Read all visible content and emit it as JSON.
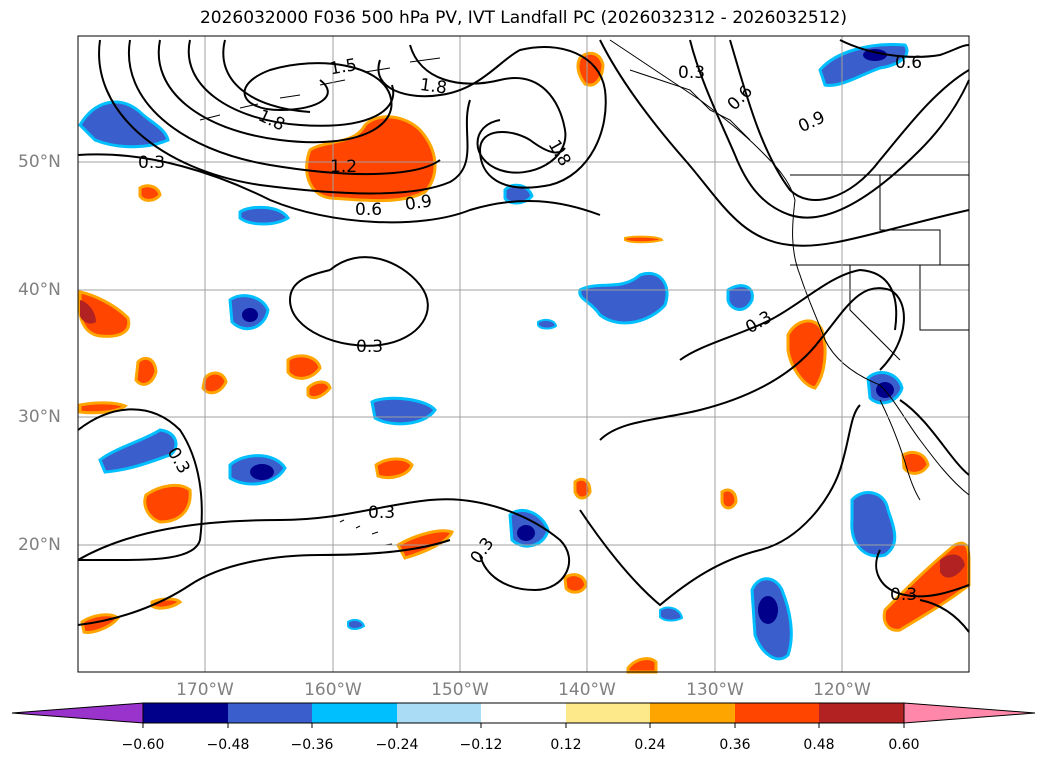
{
  "title": "2026032000 F036 500 hPa PV, IVT Landfall PC (2026032312 - 2026032512)",
  "map": {
    "region": "North Pacific / US West Coast",
    "lat_labels": [
      "50°N",
      "40°N",
      "30°N",
      "20°N"
    ],
    "lon_labels": [
      "170°W",
      "160°W",
      "150°W",
      "140°W",
      "130°W",
      "120°W"
    ]
  },
  "contour_labels": [
    "1.5",
    "1.8",
    "1.8",
    "1.8",
    "1.2",
    "0.6",
    "0.9",
    "0.3",
    "0.3",
    "0.3",
    "0.3",
    "0.3",
    "0.3",
    "0.3",
    "0.6",
    "0.9",
    "0.6",
    "0.3"
  ],
  "colorbar": {
    "ticks": [
      "−0.60",
      "−0.48",
      "−0.36",
      "−0.24",
      "−0.12",
      "0.12",
      "0.24",
      "0.36",
      "0.48",
      "0.60"
    ],
    "colors": [
      "#9933cc",
      "#00008b",
      "#3a5fcd",
      "#00bfff",
      "#aadcf6",
      "#ffffff",
      "#fde98a",
      "#ffa500",
      "#ff4500",
      "#b22222",
      "#ff88aa"
    ]
  }
}
